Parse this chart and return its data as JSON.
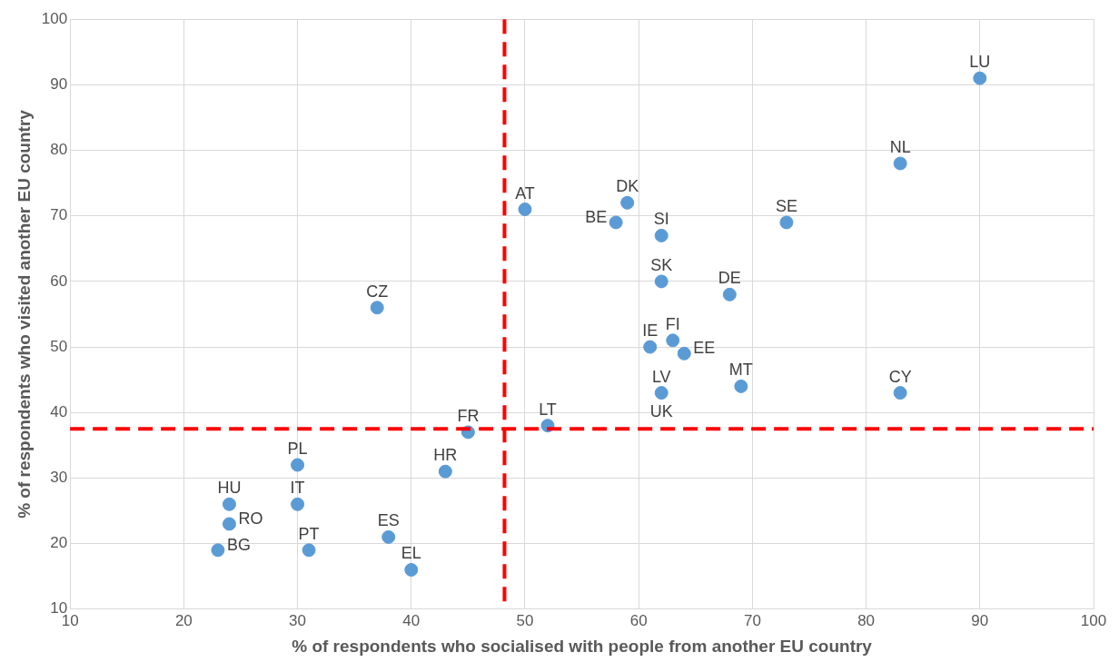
{
  "chart_data": {
    "type": "scatter",
    "xlabel": "% of respondents who socialised with people from another EU country",
    "ylabel": "% of respondents who visited another EU country",
    "x": [
      90,
      83,
      73,
      68,
      83,
      69,
      50,
      59,
      58,
      62,
      62,
      61,
      63,
      64,
      62,
      null,
      37,
      45,
      52,
      43,
      30,
      30,
      24,
      24,
      23,
      31,
      38,
      40
    ],
    "series": [
      {
        "color": "#5b9bd5",
        "values": [
          91,
          78,
          69,
          58,
          43,
          44,
          71,
          72,
          69,
          67,
          60,
          50,
          51,
          49,
          43,
          null,
          56,
          37,
          38,
          31,
          32,
          26,
          26,
          23,
          19,
          19,
          21,
          16
        ]
      }
    ],
    "xlim": [
      10,
      100
    ],
    "ylim": [
      10,
      100
    ],
    "xticks": [
      10,
      20,
      30,
      40,
      50,
      60,
      70,
      80,
      90,
      100
    ],
    "yticks": [
      10,
      20,
      30,
      40,
      50,
      60,
      70,
      80,
      90,
      100
    ],
    "grid": true,
    "marker": "circle",
    "ref_lines": [
      {
        "axis": "x",
        "value": 48.2,
        "color": "#ff0000",
        "line_style": "dashed"
      },
      {
        "axis": "y",
        "value": 37.5,
        "color": "#ff0000",
        "line_style": "dashed"
      }
    ],
    "annotations": [
      {
        "text": "LU",
        "x": 90,
        "y": 91
      },
      {
        "text": "NL",
        "x": 83,
        "y": 78
      },
      {
        "text": "SE",
        "x": 73,
        "y": 69
      },
      {
        "text": "DE",
        "x": 68,
        "y": 58
      },
      {
        "text": "CY",
        "x": 83,
        "y": 43
      },
      {
        "text": "MT",
        "x": 69,
        "y": 44
      },
      {
        "text": "AT",
        "x": 50,
        "y": 71
      },
      {
        "text": "DK",
        "x": 59,
        "y": 72
      },
      {
        "text": "BE",
        "x": 58,
        "y": 69
      },
      {
        "text": "SI",
        "x": 62,
        "y": 67
      },
      {
        "text": "SK",
        "x": 62,
        "y": 60
      },
      {
        "text": "IE",
        "x": 61,
        "y": 50
      },
      {
        "text": "FI",
        "x": 63,
        "y": 51
      },
      {
        "text": "EE",
        "x": 64,
        "y": 49
      },
      {
        "text": "LV",
        "x": 62,
        "y": 43
      },
      {
        "text": "UK",
        "x": 62,
        "y": 43
      },
      {
        "text": "CZ",
        "x": 37,
        "y": 56
      },
      {
        "text": "FR",
        "x": 45,
        "y": 37
      },
      {
        "text": "LT",
        "x": 52,
        "y": 38
      },
      {
        "text": "HR",
        "x": 43,
        "y": 31
      },
      {
        "text": "PL",
        "x": 30,
        "y": 32
      },
      {
        "text": "IT",
        "x": 30,
        "y": 26
      },
      {
        "text": "HU",
        "x": 24,
        "y": 26
      },
      {
        "text": "RO",
        "x": 24,
        "y": 23
      },
      {
        "text": "BG",
        "x": 23,
        "y": 19
      },
      {
        "text": "PT",
        "x": 31,
        "y": 19
      },
      {
        "text": "ES",
        "x": 38,
        "y": 21
      },
      {
        "text": "EL",
        "x": 40,
        "y": 16
      }
    ]
  }
}
